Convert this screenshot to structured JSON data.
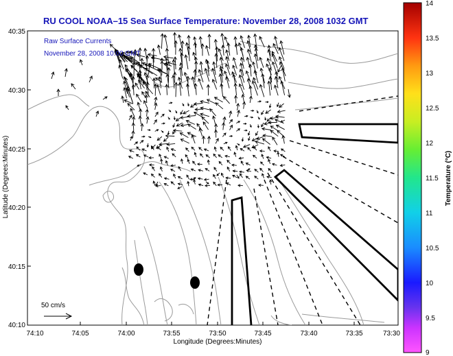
{
  "title": "RU COOL  NOAA–15  Sea Surface Temperature:  November 28, 2008 1032 GMT",
  "overlay": {
    "line1": "Raw Surface Currents",
    "line2": "November 28, 2008 10:00 GMT"
  },
  "axes": {
    "xlabel": "Longitude (Degrees:Minutes)",
    "ylabel": "Latitude (Degrees:Minutes)",
    "xticks": [
      "74:10",
      "74:05",
      "74:00",
      "73:55",
      "73:50",
      "73:45",
      "73:40",
      "73:35",
      "73:30"
    ],
    "yticks": [
      "40:35",
      "40:30",
      "40:25",
      "40:20",
      "40:15",
      "40:10"
    ]
  },
  "colorbar": {
    "label": "Temperature (°C)",
    "min": 9,
    "max": 14,
    "ticks": [
      "14",
      "13.5",
      "13",
      "12.5",
      "12",
      "11.5",
      "11",
      "10.5",
      "10",
      "9.5",
      "9"
    ]
  },
  "scale_arrow": {
    "label": "50 cm/s"
  },
  "colors": {
    "title": "#1515b8",
    "land_contour": "#999999",
    "arrows": "#000000"
  }
}
